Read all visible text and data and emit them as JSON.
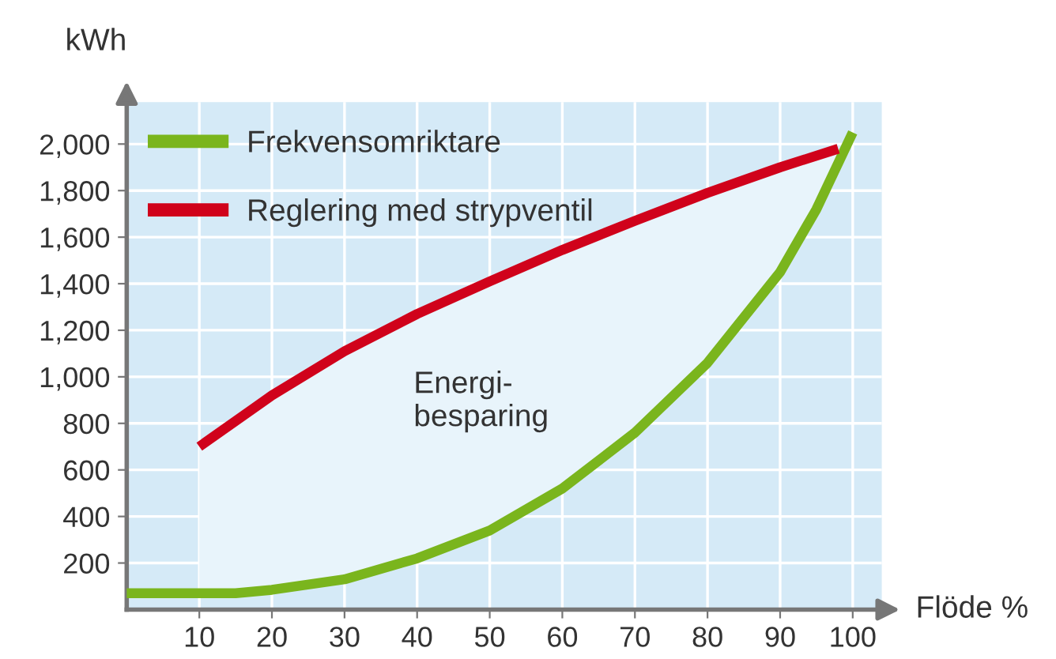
{
  "chart_data": {
    "type": "line",
    "xlabel": "Flöde %",
    "ylabel": "kWh",
    "xlim": [
      0,
      104
    ],
    "ylim": [
      0,
      2180
    ],
    "xticks": [
      10,
      20,
      30,
      40,
      50,
      60,
      70,
      80,
      90,
      100
    ],
    "yticks": [
      200,
      400,
      600,
      800,
      {
        "value": 1000,
        "label": "1,000"
      },
      {
        "value": 1200,
        "label": "1,200"
      },
      {
        "value": 1400,
        "label": "1,400"
      },
      {
        "value": 1600,
        "label": "1,600"
      },
      {
        "value": 1800,
        "label": "1,800"
      },
      {
        "value": 2000,
        "label": "2,000"
      }
    ],
    "grid": true,
    "legend": "top left",
    "marker": "none",
    "line_style": "solid",
    "annotations": [
      "Energi-\nbesparing"
    ],
    "series": [
      {
        "name": "Frekvensomriktare",
        "color": "#7ab51d",
        "x": [
          0,
          10,
          15,
          20,
          30,
          40,
          50,
          60,
          70,
          80,
          90,
          95,
          100
        ],
        "values": [
          70,
          70,
          70,
          85,
          130,
          220,
          340,
          520,
          760,
          1060,
          1450,
          1720,
          2050
        ]
      },
      {
        "name": "Reglering med strypventil",
        "color": "#d0021b",
        "x": [
          10,
          20,
          30,
          40,
          50,
          60,
          70,
          80,
          90,
          98
        ],
        "values": [
          700,
          920,
          1110,
          1270,
          1410,
          1545,
          1670,
          1790,
          1900,
          1980
        ],
        "lower": [
          70,
          85,
          130,
          220,
          340,
          520,
          760,
          1060,
          1450,
          1930
        ],
        "upper": [
          700,
          920,
          1110,
          1270,
          1410,
          1545,
          1670,
          1790,
          1900,
          1980
        ]
      }
    ]
  }
}
